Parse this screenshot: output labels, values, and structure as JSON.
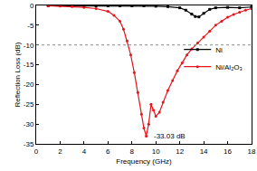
{
  "chart_data": {
    "type": "line",
    "x_label": "Frequency (GHz)",
    "y_label": "Reflection Loss (dB)",
    "xlim": [
      0,
      18
    ],
    "xticks": [
      0,
      2,
      4,
      6,
      8,
      10,
      12,
      14,
      16,
      18
    ],
    "ylim": [
      -35,
      0
    ],
    "yticks": [
      -35,
      -30,
      -25,
      -20,
      -15,
      -10,
      -5,
      0
    ],
    "grid": false,
    "legend": "right",
    "series": [
      {
        "name": "Ni",
        "color": "#000000",
        "marker": "square",
        "x": [
          1,
          2,
          3,
          4,
          5,
          6,
          7,
          8,
          9,
          10,
          11,
          12,
          12.5,
          13,
          13.3,
          13.6,
          14,
          14.5,
          15,
          16,
          17,
          18
        ],
        "values": [
          -0.1,
          -0.1,
          -0.1,
          -0.1,
          -0.1,
          -0.1,
          -0.1,
          -0.1,
          -0.1,
          -0.2,
          -0.3,
          -0.6,
          -1.2,
          -2.2,
          -2.8,
          -2.9,
          -2.0,
          -1.0,
          -0.6,
          -0.5,
          -0.6,
          -0.4
        ]
      },
      {
        "name": "Ni/Al₂O₃",
        "color": "#e8141c",
        "marker": "circle",
        "x": [
          1,
          2,
          3,
          4,
          5,
          6,
          6.5,
          7,
          7.3,
          7.6,
          7.9,
          8.2,
          8.5,
          8.8,
          9.0,
          9.2,
          9.4,
          9.6,
          9.8,
          10.0,
          10.3,
          10.6,
          11.0,
          11.4,
          11.8,
          12.2,
          12.6,
          13.0,
          13.5,
          14,
          14.5,
          15,
          15.5,
          16,
          16.5,
          17,
          17.5,
          18
        ],
        "values": [
          -0.1,
          -0.2,
          -0.3,
          -0.5,
          -0.8,
          -1.5,
          -2.5,
          -4.0,
          -6.0,
          -9.0,
          -12.5,
          -17.0,
          -22.0,
          -27.5,
          -31.0,
          -33.03,
          -30.0,
          -25.0,
          -26.5,
          -28.0,
          -27.0,
          -24.5,
          -21.5,
          -19.0,
          -16.5,
          -14.5,
          -12.5,
          -11.0,
          -9.5,
          -8.0,
          -6.5,
          -5.0,
          -4.0,
          -3.0,
          -2.3,
          -1.7,
          -1.2,
          -0.8
        ]
      }
    ],
    "reference_lines": [
      {
        "y": -10,
        "line_style": "dot"
      }
    ],
    "annotations": [
      {
        "text": "-33.03 dB",
        "x": 9.2,
        "y": -33.03
      }
    ]
  }
}
